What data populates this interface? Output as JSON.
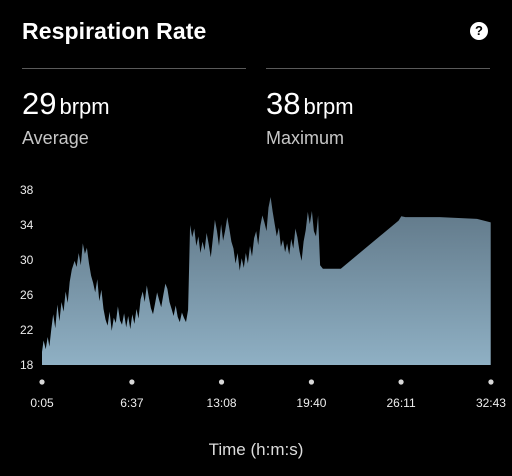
{
  "header": {
    "title": "Respiration Rate",
    "help_icon": "question-circle-icon",
    "help_symbol": "?"
  },
  "stats": {
    "average": {
      "value": "29",
      "unit": "brpm",
      "label": "Average"
    },
    "maximum": {
      "value": "38",
      "unit": "brpm",
      "label": "Maximum"
    }
  },
  "colors": {
    "background": "#000000",
    "area_fill_top": "#5e7585",
    "area_fill_bottom": "#8fb0c4",
    "tick_dot": "#d8d8d8"
  },
  "chart_data": {
    "type": "area",
    "xlabel": "Time (h:m:s)",
    "ylabel": "",
    "ylim": [
      18,
      38
    ],
    "yticks": [
      18,
      22,
      26,
      30,
      34,
      38
    ],
    "xlim": [
      0.083,
      32.72
    ],
    "xticks": [
      {
        "value": 0.083,
        "label": "0:05"
      },
      {
        "value": 6.617,
        "label": "6:37"
      },
      {
        "value": 13.133,
        "label": "13:08"
      },
      {
        "value": 19.667,
        "label": "19:40"
      },
      {
        "value": 26.183,
        "label": "26:11"
      },
      {
        "value": 32.717,
        "label": "32:43"
      }
    ],
    "grid": false,
    "x_units": "minutes",
    "series": [
      {
        "values": [
          [
            0.08,
            19.5
          ],
          [
            0.2,
            20.8
          ],
          [
            0.35,
            19.8
          ],
          [
            0.5,
            21.2
          ],
          [
            0.62,
            20.1
          ],
          [
            0.75,
            22.0
          ],
          [
            0.9,
            23.8
          ],
          [
            1.05,
            22.2
          ],
          [
            1.2,
            24.9
          ],
          [
            1.35,
            23.0
          ],
          [
            1.5,
            25.2
          ],
          [
            1.65,
            24.1
          ],
          [
            1.8,
            26.4
          ],
          [
            1.95,
            25.1
          ],
          [
            2.1,
            27.5
          ],
          [
            2.25,
            28.9
          ],
          [
            2.45,
            29.9
          ],
          [
            2.6,
            29.2
          ],
          [
            2.75,
            30.8
          ],
          [
            2.9,
            29.4
          ],
          [
            3.05,
            31.9
          ],
          [
            3.2,
            30.7
          ],
          [
            3.35,
            31.4
          ],
          [
            3.5,
            29.6
          ],
          [
            3.65,
            28.2
          ],
          [
            3.8,
            27.4
          ],
          [
            3.95,
            26.3
          ],
          [
            4.1,
            27.8
          ],
          [
            4.25,
            25.3
          ],
          [
            4.4,
            26.6
          ],
          [
            4.55,
            24.4
          ],
          [
            4.7,
            23.2
          ],
          [
            4.85,
            22.5
          ],
          [
            5.0,
            24.1
          ],
          [
            5.15,
            21.9
          ],
          [
            5.3,
            23.4
          ],
          [
            5.45,
            22.8
          ],
          [
            5.6,
            24.7
          ],
          [
            5.75,
            23.1
          ],
          [
            5.9,
            22.6
          ],
          [
            6.05,
            23.9
          ],
          [
            6.2,
            22.3
          ],
          [
            6.35,
            23.6
          ],
          [
            6.5,
            22.1
          ],
          [
            6.65,
            23.8
          ],
          [
            6.8,
            22.7
          ],
          [
            6.95,
            24.4
          ],
          [
            7.1,
            23.3
          ],
          [
            7.25,
            25.5
          ],
          [
            7.4,
            26.4
          ],
          [
            7.55,
            25.2
          ],
          [
            7.7,
            27.1
          ],
          [
            7.85,
            25.7
          ],
          [
            8.0,
            24.5
          ],
          [
            8.15,
            23.8
          ],
          [
            8.3,
            25.0
          ],
          [
            8.45,
            26.3
          ],
          [
            8.6,
            25.4
          ],
          [
            8.75,
            24.6
          ],
          [
            8.9,
            26.0
          ],
          [
            9.05,
            27.3
          ],
          [
            9.2,
            26.7
          ],
          [
            9.35,
            25.2
          ],
          [
            9.5,
            24.4
          ],
          [
            9.65,
            23.6
          ],
          [
            9.8,
            24.8
          ],
          [
            9.95,
            23.5
          ],
          [
            10.1,
            22.9
          ],
          [
            10.25,
            24.0
          ],
          [
            10.4,
            23.4
          ],
          [
            10.55,
            22.9
          ],
          [
            10.7,
            24.3
          ],
          [
            10.85,
            34.0
          ],
          [
            11.0,
            32.6
          ],
          [
            11.15,
            33.6
          ],
          [
            11.3,
            31.6
          ],
          [
            11.45,
            32.7
          ],
          [
            11.6,
            30.8
          ],
          [
            11.75,
            32.1
          ],
          [
            11.9,
            31.1
          ],
          [
            12.05,
            33.1
          ],
          [
            12.2,
            31.8
          ],
          [
            12.35,
            30.3
          ],
          [
            12.5,
            32.4
          ],
          [
            12.65,
            34.6
          ],
          [
            12.8,
            33.3
          ],
          [
            12.95,
            31.6
          ],
          [
            13.1,
            34.1
          ],
          [
            13.25,
            32.2
          ],
          [
            13.4,
            33.4
          ],
          [
            13.55,
            34.9
          ],
          [
            13.7,
            33.6
          ],
          [
            13.85,
            32.1
          ],
          [
            14.0,
            31.3
          ],
          [
            14.15,
            29.6
          ],
          [
            14.3,
            30.8
          ],
          [
            14.45,
            28.8
          ],
          [
            14.6,
            30.2
          ],
          [
            14.75,
            29.1
          ],
          [
            14.9,
            30.8
          ],
          [
            15.05,
            29.6
          ],
          [
            15.2,
            31.6
          ],
          [
            15.35,
            30.4
          ],
          [
            15.5,
            32.5
          ],
          [
            15.65,
            33.3
          ],
          [
            15.8,
            31.7
          ],
          [
            15.95,
            33.9
          ],
          [
            16.1,
            35.1
          ],
          [
            16.25,
            34.3
          ],
          [
            16.4,
            33.3
          ],
          [
            16.55,
            36.0
          ],
          [
            16.7,
            37.2
          ],
          [
            16.85,
            35.5
          ],
          [
            17.0,
            34.1
          ],
          [
            17.15,
            32.7
          ],
          [
            17.3,
            33.7
          ],
          [
            17.45,
            31.5
          ],
          [
            17.6,
            32.3
          ],
          [
            17.75,
            30.9
          ],
          [
            17.9,
            31.9
          ],
          [
            18.05,
            30.6
          ],
          [
            18.2,
            32.4
          ],
          [
            18.35,
            31.3
          ],
          [
            18.5,
            33.6
          ],
          [
            18.65,
            32.6
          ],
          [
            18.8,
            31.0
          ],
          [
            18.95,
            29.9
          ],
          [
            19.1,
            32.1
          ],
          [
            19.25,
            33.4
          ],
          [
            19.4,
            35.5
          ],
          [
            19.55,
            34.1
          ],
          [
            19.7,
            35.6
          ],
          [
            19.85,
            33.3
          ],
          [
            20.0,
            32.7
          ],
          [
            20.15,
            35.1
          ],
          [
            20.3,
            29.4
          ],
          [
            20.5,
            29.0
          ],
          [
            21.5,
            29.0
          ],
          [
            21.8,
            29.0
          ],
          [
            26.0,
            34.5
          ],
          [
            26.2,
            35.0
          ],
          [
            26.5,
            34.9
          ],
          [
            29.0,
            34.9
          ],
          [
            31.7,
            34.7
          ],
          [
            32.7,
            34.3
          ]
        ]
      }
    ]
  }
}
